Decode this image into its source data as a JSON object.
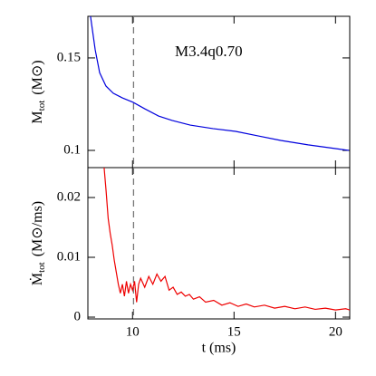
{
  "chart_data": [
    {
      "type": "line",
      "annotation": "M3.4q0.70",
      "ylabel": {
        "symbol": "M",
        "subscript": "tot",
        "unit": "(M⊙)"
      },
      "xlim": [
        7.8,
        20.7
      ],
      "xticks": [
        10,
        15,
        20
      ],
      "ylim": [
        0.0907,
        0.1725
      ],
      "yticks": [
        0.1,
        0.15
      ],
      "vline": 10.05,
      "series": [
        {
          "color": "#0000dd",
          "x": [
            7.93,
            8.16,
            8.38,
            8.69,
            9.05,
            9.5,
            10.03,
            10.6,
            11.28,
            11.95,
            12.84,
            13.96,
            15.08,
            16.2,
            17.3,
            18.65,
            20.0,
            20.66
          ],
          "values": [
            0.1725,
            0.1544,
            0.142,
            0.1348,
            0.1309,
            0.1284,
            0.126,
            0.1225,
            0.1186,
            0.1162,
            0.1137,
            0.1118,
            0.1103,
            0.1078,
            0.1054,
            0.103,
            0.101,
            0.1
          ]
        }
      ]
    },
    {
      "type": "line",
      "xlabel": "t (ms)",
      "ylabel": {
        "symbol": "Ṁ",
        "subscript": "tot",
        "unit": "(M⊙/ms)"
      },
      "xlim": [
        7.8,
        20.7
      ],
      "xticks": [
        10,
        15,
        20
      ],
      "ylim": [
        -0.0003,
        0.025
      ],
      "yticks": [
        0,
        0.01,
        0.02
      ],
      "vline": 10.05,
      "series": [
        {
          "color": "#ee0000",
          "x": [
            8.6,
            8.7,
            8.8,
            8.9,
            9.0,
            9.1,
            9.2,
            9.3,
            9.4,
            9.5,
            9.6,
            9.7,
            9.8,
            9.9,
            10.0,
            10.1,
            10.2,
            10.3,
            10.4,
            10.6,
            10.8,
            11.0,
            11.2,
            11.4,
            11.6,
            11.8,
            12.0,
            12.2,
            12.4,
            12.6,
            12.8,
            13.0,
            13.3,
            13.6,
            14.0,
            14.4,
            14.8,
            15.2,
            15.6,
            16.0,
            16.5,
            17.0,
            17.5,
            18.0,
            18.5,
            19.0,
            19.5,
            20.0,
            20.5,
            20.7
          ],
          "values": [
            0.025,
            0.021,
            0.0165,
            0.014,
            0.012,
            0.0095,
            0.0075,
            0.0055,
            0.004,
            0.0055,
            0.0035,
            0.006,
            0.004,
            0.0055,
            0.0045,
            0.006,
            0.0025,
            0.0055,
            0.0065,
            0.005,
            0.0068,
            0.0055,
            0.0072,
            0.006,
            0.0068,
            0.0045,
            0.005,
            0.0038,
            0.0042,
            0.0035,
            0.0038,
            0.003,
            0.0034,
            0.0025,
            0.0028,
            0.002,
            0.0024,
            0.0018,
            0.0022,
            0.0017,
            0.002,
            0.0015,
            0.0018,
            0.0014,
            0.0017,
            0.0013,
            0.0015,
            0.0012,
            0.0014,
            0.0012
          ]
        }
      ]
    }
  ]
}
